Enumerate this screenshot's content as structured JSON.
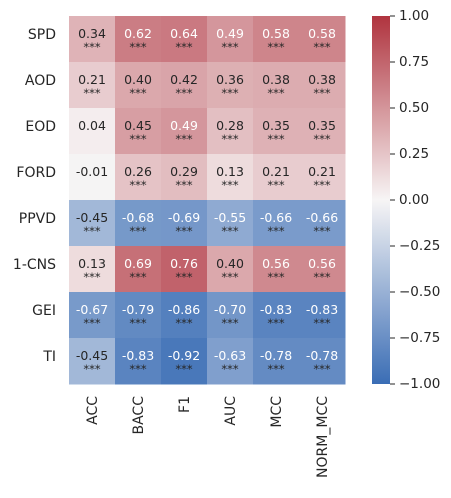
{
  "chart_data": {
    "type": "heatmap",
    "rows": [
      "SPD",
      "AOD",
      "EOD",
      "FORD",
      "PPVD",
      "1-CNS",
      "GEI",
      "TI"
    ],
    "columns": [
      "ACC",
      "BACC",
      "F1",
      "AUC",
      "MCC",
      "NORM_MCC"
    ],
    "values": [
      [
        0.34,
        0.62,
        0.64,
        0.49,
        0.58,
        0.58
      ],
      [
        0.21,
        0.4,
        0.42,
        0.36,
        0.38,
        0.38
      ],
      [
        0.04,
        0.45,
        0.49,
        0.28,
        0.35,
        0.35
      ],
      [
        -0.01,
        0.26,
        0.29,
        0.13,
        0.21,
        0.21
      ],
      [
        -0.45,
        -0.68,
        -0.69,
        -0.55,
        -0.66,
        -0.66
      ],
      [
        0.13,
        0.69,
        0.76,
        0.4,
        0.56,
        0.56
      ],
      [
        -0.67,
        -0.79,
        -0.86,
        -0.7,
        -0.83,
        -0.83
      ],
      [
        -0.45,
        -0.83,
        -0.92,
        -0.63,
        -0.78,
        -0.78
      ]
    ],
    "cell_labels": [
      [
        "0.34",
        "0.62",
        "0.64",
        "0.49",
        "0.58",
        "0.58"
      ],
      [
        "0.21",
        "0.40",
        "0.42",
        "0.36",
        "0.38",
        "0.38"
      ],
      [
        "0.04",
        "0.45",
        "0.49",
        "0.28",
        "0.35",
        "0.35"
      ],
      [
        "-0.01",
        "0.26",
        "0.29",
        "0.13",
        "0.21",
        "0.21"
      ],
      [
        "-0.45",
        "-0.68",
        "-0.69",
        "-0.55",
        "-0.66",
        "-0.66"
      ],
      [
        "0.13",
        "0.69",
        "0.76",
        "0.40",
        "0.56",
        "0.56"
      ],
      [
        "-0.67",
        "-0.79",
        "-0.86",
        "-0.70",
        "-0.83",
        "-0.83"
      ],
      [
        "-0.45",
        "-0.83",
        "-0.92",
        "-0.63",
        "-0.78",
        "-0.78"
      ]
    ],
    "significance": [
      [
        "***",
        "***",
        "***",
        "***",
        "***",
        "***"
      ],
      [
        "***",
        "***",
        "***",
        "***",
        "***",
        "***"
      ],
      [
        "",
        "***",
        "***",
        "***",
        "***",
        "***"
      ],
      [
        "",
        "***",
        "***",
        "***",
        "***",
        "***"
      ],
      [
        "***",
        "***",
        "***",
        "***",
        "***",
        "***"
      ],
      [
        "***",
        "***",
        "***",
        "***",
        "***",
        "***"
      ],
      [
        "***",
        "***",
        "***",
        "***",
        "***",
        "***"
      ],
      [
        "***",
        "***",
        "***",
        "***",
        "***",
        "***"
      ]
    ],
    "colorbar": {
      "range": [
        -1.0,
        1.0
      ],
      "ticks": [
        1.0,
        0.75,
        0.5,
        0.25,
        0.0,
        -0.25,
        -0.5,
        -0.75,
        -1.0
      ],
      "tick_labels": [
        "1.00",
        "0.75",
        "0.50",
        "0.25",
        "0.00",
        "−0.25",
        "−0.50",
        "−0.75",
        "−1.00"
      ],
      "colormap": "vlag",
      "low_color": "#3a6db5",
      "mid_color": "#f7f5f5",
      "high_color": "#b0343f"
    },
    "title": "",
    "xlabel": "",
    "ylabel": ""
  }
}
